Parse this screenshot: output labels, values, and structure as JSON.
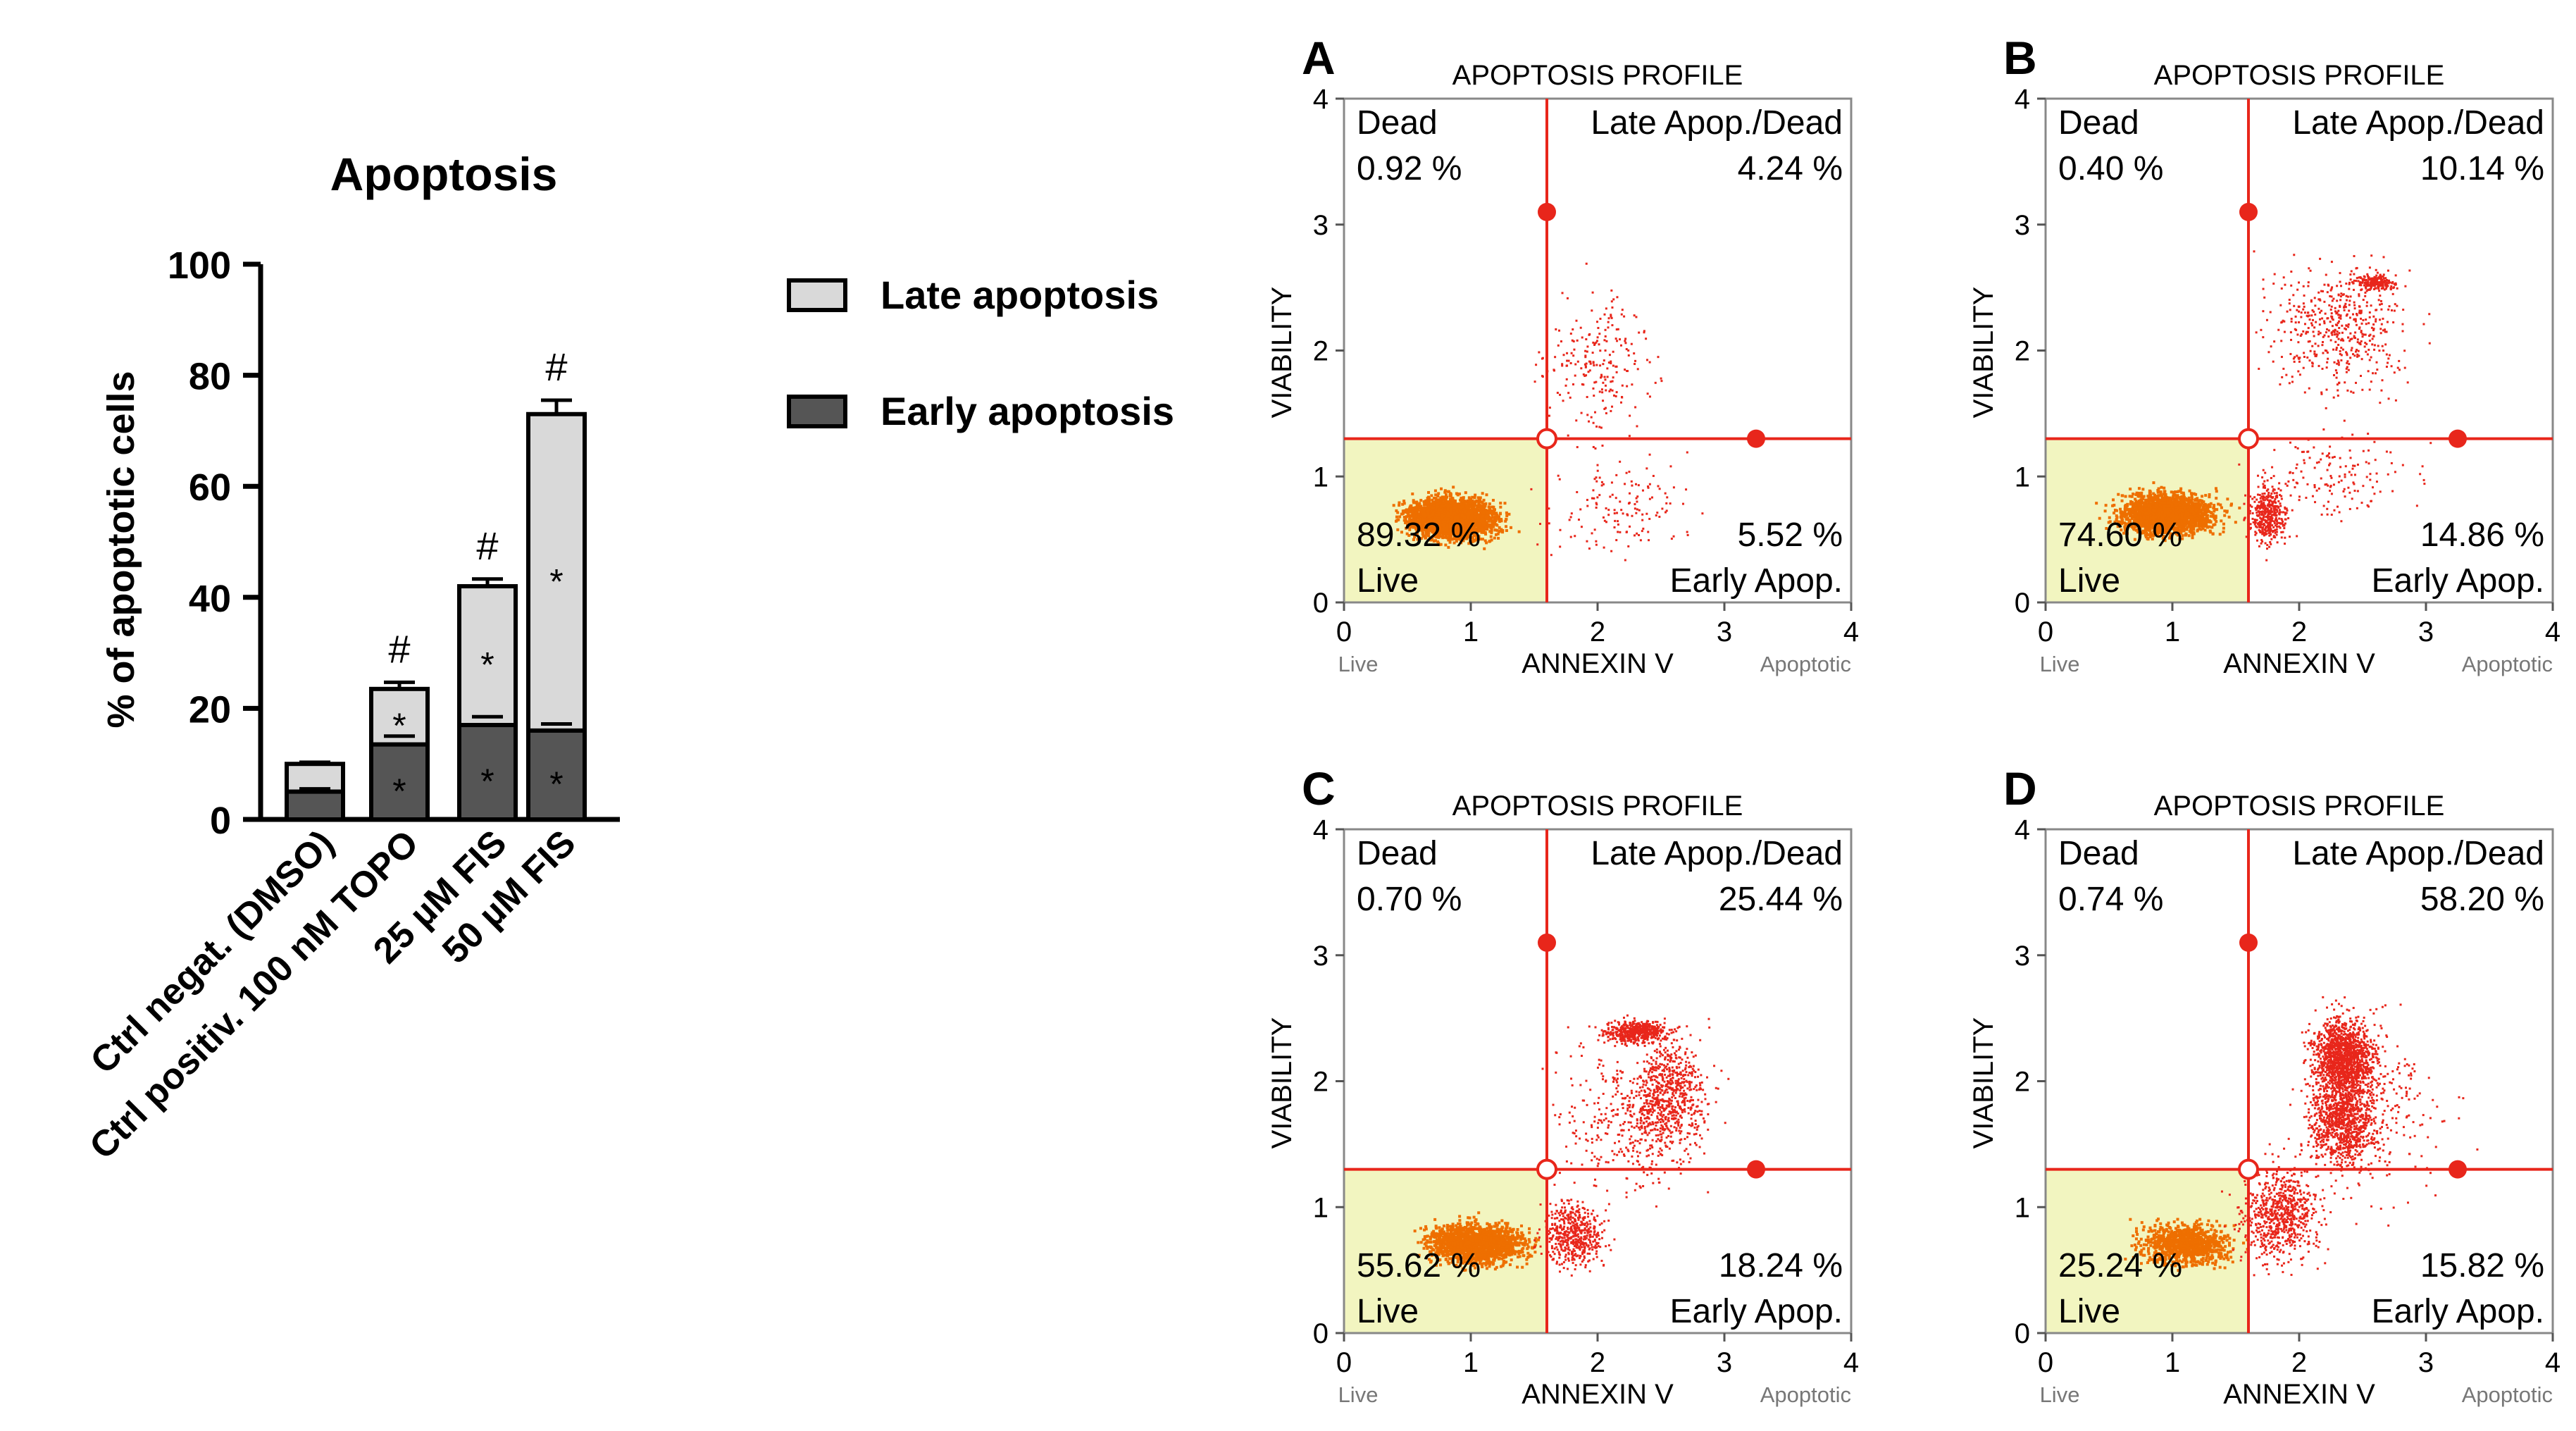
{
  "chart_data": [
    {
      "type": "bar",
      "stacked": true,
      "title": "Apoptosis",
      "ylabel": "% of apoptotic cells",
      "xlabel": "",
      "ylim": [
        0,
        100
      ],
      "yticks": [
        "0",
        "20",
        "40",
        "60",
        "80",
        "100"
      ],
      "categories": [
        "Ctrl negat. (DMSO)",
        "Ctrl positiv. 100 nM TOPO",
        "25 µM FIS",
        "50 µM FIS"
      ],
      "series": [
        {
          "name": "Early apoptosis",
          "color": "#555555",
          "values": [
            5,
            13.5,
            17,
            16
          ],
          "errors": [
            0.5,
            1.5,
            1.5,
            1.2
          ],
          "marks": [
            "",
            "*",
            "*",
            "*"
          ]
        },
        {
          "name": "Late apoptosis",
          "color": "#d9d9d9",
          "values": [
            5,
            10,
            25,
            57
          ],
          "errors": [
            0.3,
            1.2,
            1.3,
            2.5
          ],
          "marks": [
            "",
            "*",
            "*",
            "*"
          ]
        }
      ],
      "top_marks": [
        "",
        "#",
        "#",
        "#"
      ],
      "legend": [
        "Late apoptosis",
        "Early apoptosis"
      ]
    },
    {
      "type": "scatter",
      "panels": [
        {
          "letter": "A",
          "dead": "0.92 %",
          "late": "4.24 %",
          "live": "89.32 %",
          "early": "5.52 %"
        },
        {
          "letter": "B",
          "dead": "0.40 %",
          "late": "10.14 %",
          "live": "74.60 %",
          "early": "14.86 %"
        },
        {
          "letter": "C",
          "dead": "0.70 %",
          "late": "25.44 %",
          "live": "55.62 %",
          "early": "18.24 %"
        },
        {
          "letter": "D",
          "dead": "0.74 %",
          "late": "58.20 %",
          "live": "25.24 %",
          "early": "15.82 %"
        }
      ],
      "title": "APOPTOSIS PROFILE",
      "xlabel": "ANNEXIN V",
      "ylabel": "VIABILITY",
      "xlim": [
        0,
        4
      ],
      "ylim": [
        0,
        4
      ],
      "xticks": [
        "0",
        "1",
        "2",
        "3",
        "4"
      ],
      "yticks": [
        "0",
        "1",
        "2",
        "3",
        "4"
      ],
      "gate_x": 1.6,
      "gate_y": 1.3,
      "labels": {
        "dead": "Dead",
        "late": "Late Apop./Dead",
        "live": "Live",
        "early": "Early Apop.",
        "x_left": "Live",
        "x_right": "Apoptotic"
      },
      "colors": {
        "live_region": "#f2f5c0",
        "gate": "#e8261b",
        "live_dots": "#ee6f00",
        "other_dots": "#e8261b"
      }
    }
  ]
}
